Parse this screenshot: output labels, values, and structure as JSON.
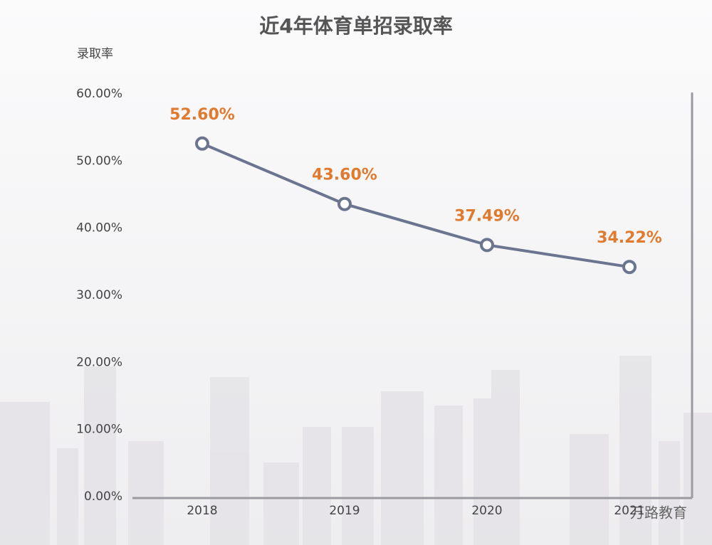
{
  "chart_data": {
    "type": "line",
    "title": "近4年体育单招录取率",
    "y_label": "录取率",
    "categories": [
      "2018",
      "2019",
      "2020",
      "2021"
    ],
    "series": [
      {
        "name": "录取率",
        "color": "#6b7590",
        "values": [
          52.6,
          43.6,
          37.49,
          34.22
        ],
        "value_labels": [
          "52.60%",
          "43.60%",
          "37.49%",
          "34.22%"
        ]
      }
    ],
    "label_color": "#e07a2e",
    "ylim": [
      0,
      60
    ],
    "yticks": [
      {
        "value": 0,
        "label": "0.00%"
      },
      {
        "value": 10,
        "label": "10.00%"
      },
      {
        "value": 20,
        "label": "20.00%"
      },
      {
        "value": 30,
        "label": "30.00%"
      },
      {
        "value": 40,
        "label": "40.00%"
      },
      {
        "value": 50,
        "label": "50.00%"
      },
      {
        "value": 60,
        "label": "60.00%"
      }
    ],
    "watermark": "万路教育"
  }
}
